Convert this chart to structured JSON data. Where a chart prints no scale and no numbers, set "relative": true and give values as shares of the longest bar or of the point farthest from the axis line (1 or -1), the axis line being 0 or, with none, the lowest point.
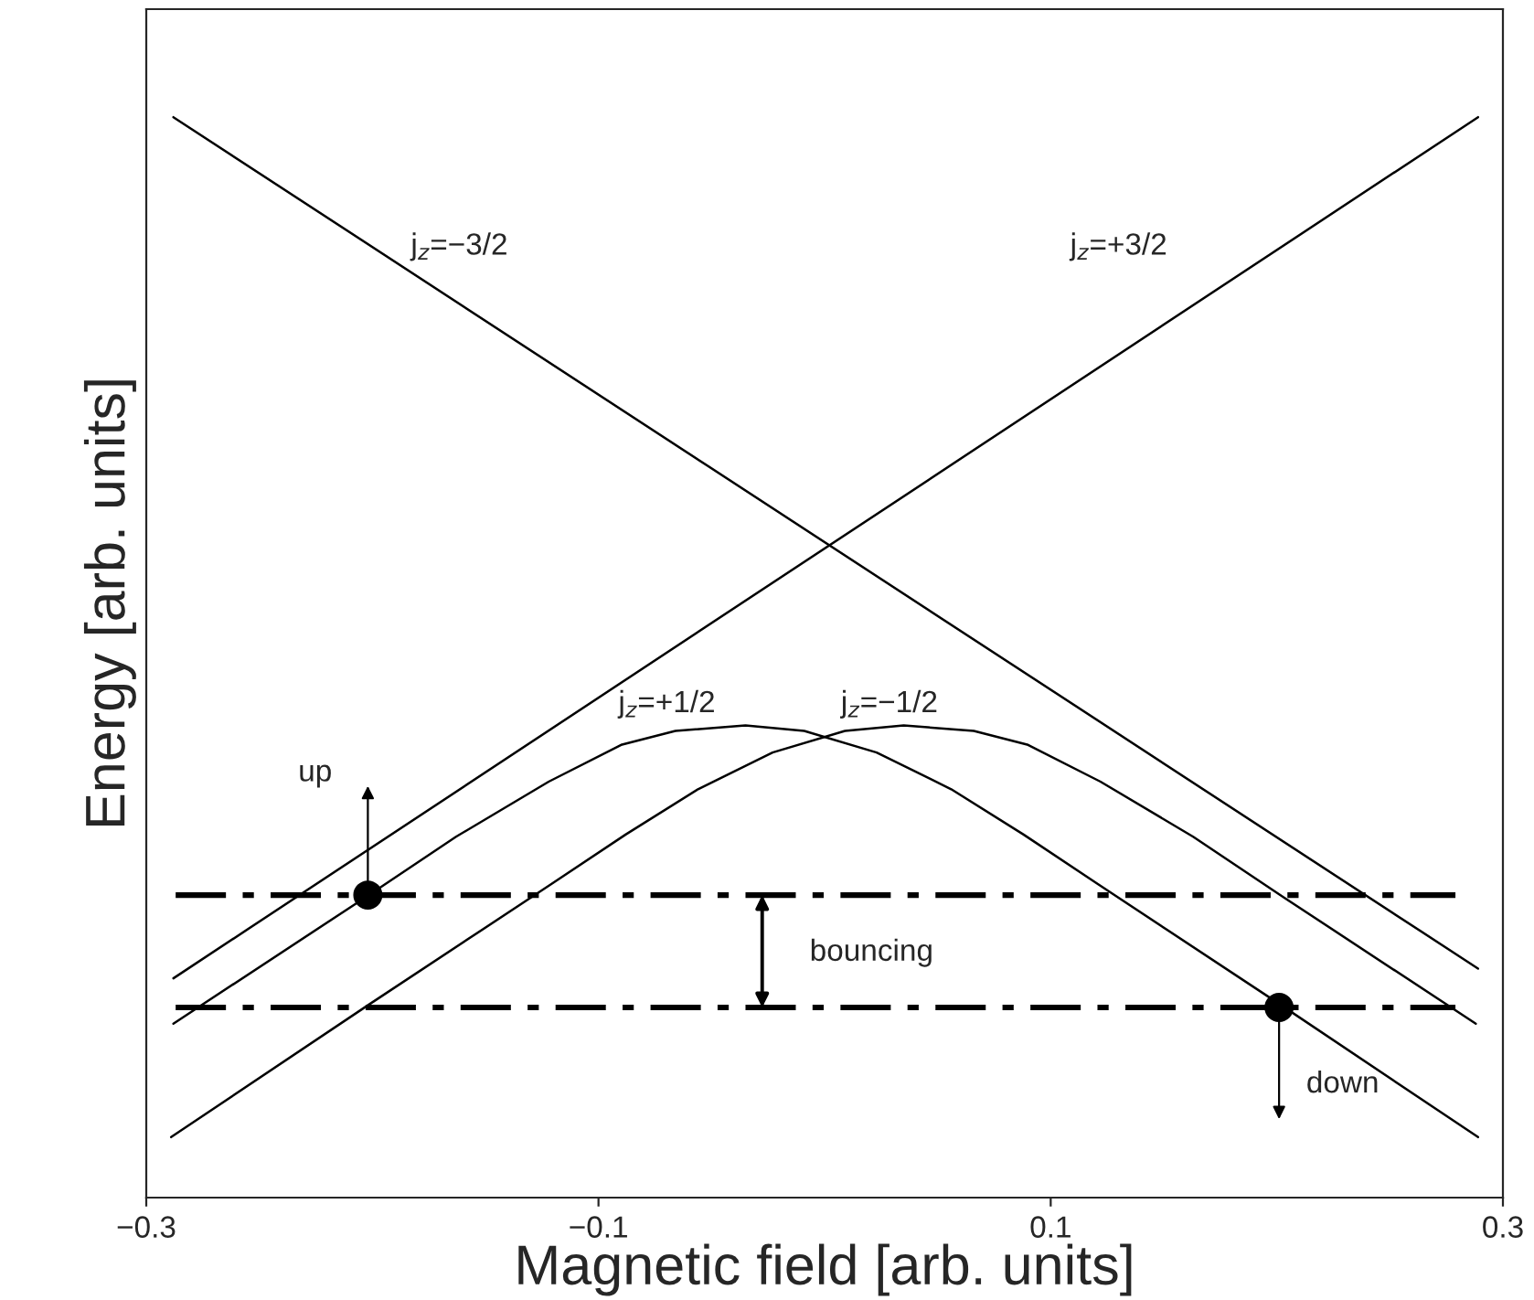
{
  "chart_data": {
    "type": "line",
    "xlabel": "Magnetic field [arb. units]",
    "ylabel": "Energy [arb. units]",
    "relative": true,
    "xlim": [
      -0.3,
      0.3
    ],
    "xticks": [
      {
        "value": -0.3,
        "label": "−0.3"
      },
      {
        "value": -0.1,
        "label": "−0.1"
      },
      0.1,
      0.3
    ],
    "grid": false,
    "legend": false,
    "marker": "none",
    "line_style": "solid",
    "series": [
      {
        "color": "#000000",
        "x": [
          -0.288,
          0.289
        ],
        "values": [
          0.203,
          1.0
        ]
      },
      {
        "color": "#000000",
        "x": [
          -0.288,
          0.289
        ],
        "values": [
          1.0,
          0.212
        ]
      },
      {
        "color": "#000000",
        "x": [
          -0.288,
          -0.203,
          -0.163,
          -0.122,
          -0.09,
          -0.066,
          -0.035,
          -0.009,
          0.023,
          0.056,
          0.088,
          0.121,
          0.202,
          0.289
        ],
        "values": [
          0.161,
          0.278,
          0.334,
          0.385,
          0.419,
          0.432,
          0.437,
          0.432,
          0.412,
          0.378,
          0.336,
          0.29,
          0.178,
          0.056
        ]
      },
      {
        "color": "#000000",
        "x": [
          -0.289,
          -0.202,
          -0.121,
          -0.088,
          -0.056,
          -0.023,
          0.009,
          0.035,
          0.066,
          0.09,
          0.122,
          0.163,
          0.203,
          0.288
        ],
        "values": [
          0.056,
          0.178,
          0.29,
          0.336,
          0.378,
          0.412,
          0.432,
          0.437,
          0.432,
          0.419,
          0.385,
          0.334,
          0.278,
          0.161
        ]
      },
      {
        "color": "#000000",
        "line_style": "dashed",
        "x": [
          -0.287,
          0.279
        ],
        "values": [
          0.28,
          0.28
        ]
      },
      {
        "color": "#000000",
        "line_style": "dashed",
        "x": [
          -0.287,
          0.279
        ],
        "values": [
          0.176,
          0.176
        ]
      },
      {
        "type": "scatter",
        "marker": "circle",
        "color": "#000000",
        "x": [
          -0.202,
          0.201
        ],
        "values": [
          0.28,
          0.176
        ]
      }
    ],
    "annotations": [
      "j$_{z}$=−3/2",
      "j$_{z}$=+3/2",
      "j$_{z}$=+1/2",
      "j$_{z}$=−1/2",
      "up",
      "bouncing",
      "down"
    ]
  }
}
